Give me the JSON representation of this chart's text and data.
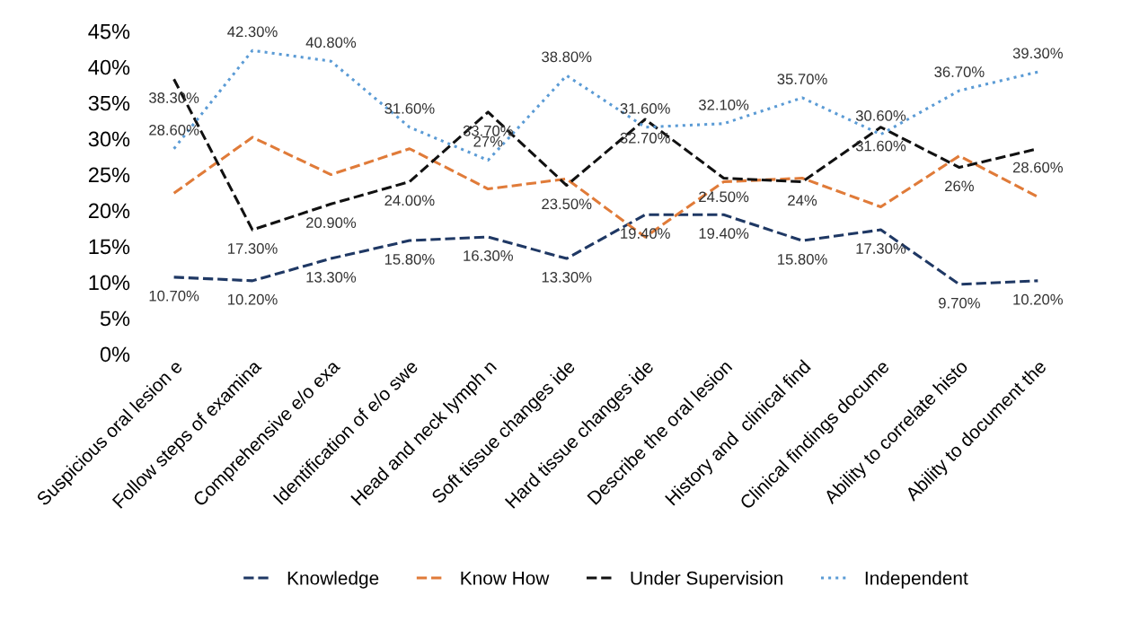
{
  "chart_data": {
    "type": "line",
    "categories": [
      "Suspicious oral lesion e",
      "Follow steps of examina",
      "Comprehensive e/o exa",
      "Identification of e/o swe",
      "Head and neck lymph n",
      "Soft tissue changes ide",
      "Hard tissue changes ide",
      "Describe the oral lesion",
      "History and  clinical find",
      "Clinical findings docume",
      "Ability to correlate histo",
      "Ability to document the"
    ],
    "series": [
      {
        "name": "Knowledge",
        "color": "#1f3864",
        "line_style": "dashed",
        "values": [
          10.7,
          10.2,
          13.3,
          15.8,
          16.3,
          13.3,
          19.4,
          19.4,
          15.8,
          17.3,
          9.7,
          10.2
        ],
        "value_labels": [
          "10.70%",
          "10.20%",
          "13.30%",
          "15.80%",
          "16.30%",
          "13.30%",
          "19.40%",
          "19.40%",
          "15.80%",
          "17.30%",
          "9.70%",
          "10.20%"
        ]
      },
      {
        "name": "Know How",
        "color": "#e07b39",
        "line_style": "dashed",
        "values": [
          22.4,
          30.2,
          25.0,
          28.6,
          23.0,
          24.4,
          16.3,
          24.0,
          24.5,
          20.5,
          27.6,
          21.9
        ]
      },
      {
        "name": "Under Supervision",
        "color": "#111111",
        "line_style": "dashed",
        "values": [
          38.3,
          17.3,
          20.9,
          24.0,
          33.7,
          23.5,
          32.7,
          24.5,
          24,
          31.6,
          26,
          28.6
        ],
        "value_labels": [
          "38.30%",
          "17.30%",
          "20.90%",
          "24.00%",
          "33.70%",
          "23.50%",
          "32.70%",
          "24.50%",
          "24%",
          "31.60%",
          "26%",
          "28.60%"
        ]
      },
      {
        "name": "Independent",
        "color": "#5b9bd5",
        "line_style": "dotted",
        "values": [
          28.6,
          42.3,
          40.8,
          31.6,
          27,
          38.8,
          31.6,
          32.1,
          35.7,
          30.6,
          36.7,
          39.3
        ],
        "value_labels": [
          "28.60%",
          "42.30%",
          "40.80%",
          "31.60%",
          "27%",
          "38.80%",
          "31.60%",
          "32.10%",
          "35.70%",
          "30.60%",
          "36.70%",
          "39.30%"
        ]
      }
    ],
    "ylim": [
      0,
      45
    ],
    "yticks": [
      {
        "value": 0,
        "label": "0%"
      },
      {
        "value": 5,
        "label": "5%"
      },
      {
        "value": 10,
        "label": "10%"
      },
      {
        "value": 15,
        "label": "15%"
      },
      {
        "value": 20,
        "label": "20%"
      },
      {
        "value": 25,
        "label": "25%"
      },
      {
        "value": 30,
        "label": "30%"
      },
      {
        "value": 35,
        "label": "35%"
      },
      {
        "value": 40,
        "label": "40%"
      },
      {
        "value": 45,
        "label": "45%"
      }
    ],
    "grid": false,
    "legend": "bottom",
    "marker": "none"
  }
}
